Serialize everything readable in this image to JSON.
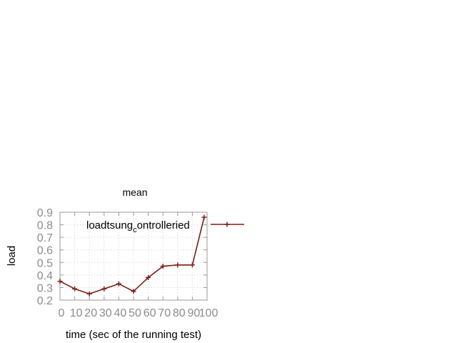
{
  "chart_data": {
    "type": "line",
    "title": "mean",
    "xlabel": "time (sec of the running test)",
    "ylabel": "load",
    "xlim": [
      0,
      100
    ],
    "ylim": [
      0.2,
      0.9
    ],
    "x_ticks": [
      "0",
      "10",
      "20",
      "30",
      "40",
      "50",
      "60",
      "70",
      "80",
      "90",
      "100"
    ],
    "y_ticks": [
      "0.2",
      "0.3",
      "0.4",
      "0.5",
      "0.6",
      "0.7",
      "0.8",
      "0.9"
    ],
    "grid": true,
    "legend": {
      "position": "top-right",
      "label_main": "loadtsung",
      "label_sub": "c",
      "label_tail": "ontrolleried"
    },
    "series": [
      {
        "name": "loadtsung_controlleried",
        "color": "#7a1e14",
        "x": [
          0,
          10,
          20,
          30,
          40,
          50,
          60,
          70,
          80,
          90,
          98
        ],
        "y": [
          0.35,
          0.29,
          0.25,
          0.29,
          0.33,
          0.27,
          0.38,
          0.47,
          0.48,
          0.48,
          0.86
        ]
      }
    ]
  }
}
